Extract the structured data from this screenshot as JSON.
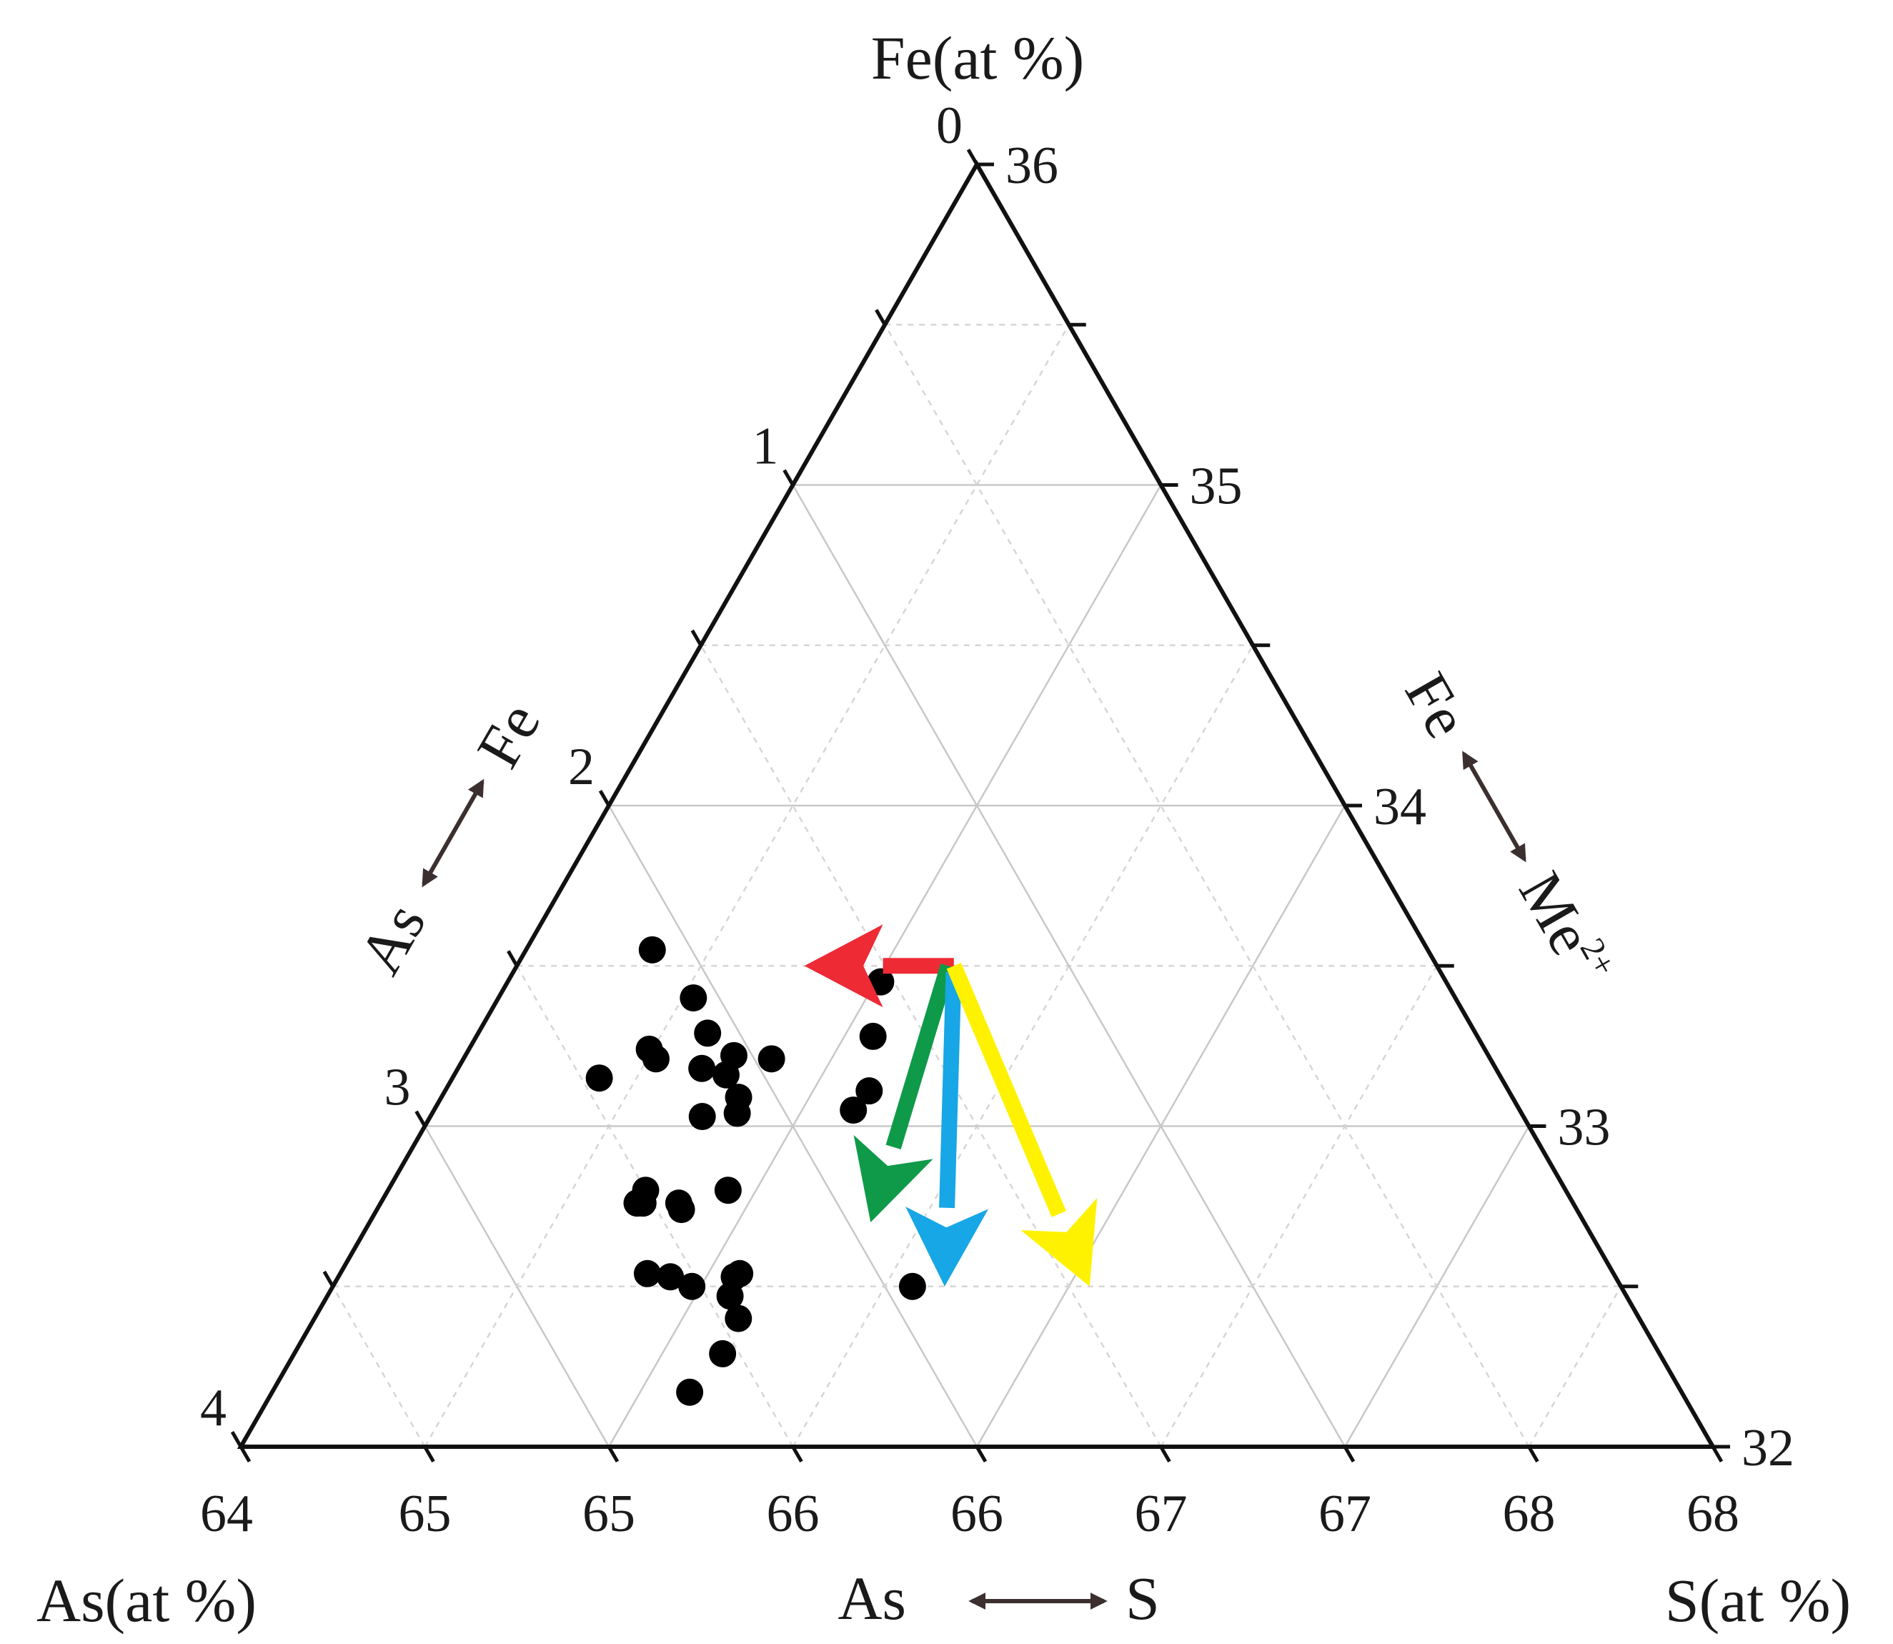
{
  "chart_data": {
    "type": "scatter",
    "subtype": "ternary",
    "title": "",
    "axes": {
      "top": {
        "title": "Fe(at %)",
        "range": [
          0,
          4
        ],
        "ticks": [
          "0",
          "1",
          "2",
          "3",
          "4"
        ]
      },
      "right": {
        "ticks": [
          "36",
          "35",
          "34",
          "33",
          "32"
        ],
        "trend_left": "Fe",
        "trend_right": "Me",
        "trend_right_sup": "2+"
      },
      "bottom": {
        "title": "As(at %)",
        "end_title": "S(at %)",
        "ticks": [
          "64",
          "65",
          "65",
          "66",
          "66",
          "67",
          "67",
          "68",
          "68"
        ],
        "trend_left": "As",
        "trend_right": "S"
      },
      "left": {
        "trend_bottom": "As",
        "trend_top": "Fe"
      }
    },
    "grid": true,
    "legend": "none",
    "colors": {
      "points": "#000000",
      "arrow_red": "#ee2a35",
      "arrow_green": "#0f9a4a",
      "arrow_blue": "#17a6e6",
      "arrow_yellow": "#fff200"
    },
    "points": [
      {
        "u": 1.12,
        "fe": 2.45
      },
      {
        "u": 1.12,
        "fe": 2.85
      },
      {
        "u": 1.63,
        "fe": 2.6
      },
      {
        "u": 1.84,
        "fe": 2.71
      },
      {
        "u": 1.42,
        "fe": 2.76
      },
      {
        "u": 1.5,
        "fe": 2.79
      },
      {
        "u": 2.1,
        "fe": 2.78
      },
      {
        "u": 1.88,
        "fe": 2.82
      },
      {
        "u": 2.08,
        "fe": 2.84
      },
      {
        "u": 1.99,
        "fe": 2.97
      },
      {
        "u": 2.4,
        "fe": 2.79
      },
      {
        "u": 2.22,
        "fe": 2.91
      },
      {
        "u": 2.24,
        "fe": 2.96
      },
      {
        "u": 1.75,
        "fe": 3.2
      },
      {
        "u": 1.72,
        "fe": 3.24
      },
      {
        "u": 1.76,
        "fe": 3.24
      },
      {
        "u": 2.0,
        "fe": 3.24
      },
      {
        "u": 2.03,
        "fe": 3.26
      },
      {
        "u": 2.31,
        "fe": 3.2
      },
      {
        "u": 1.93,
        "fe": 3.46
      },
      {
        "u": 2.08,
        "fe": 3.47
      },
      {
        "u": 2.23,
        "fe": 3.5
      },
      {
        "u": 2.48,
        "fe": 3.47
      },
      {
        "u": 2.51,
        "fe": 3.46
      },
      {
        "u": 2.48,
        "fe": 3.53
      },
      {
        "u": 2.56,
        "fe": 3.6
      },
      {
        "u": 2.51,
        "fe": 3.71
      },
      {
        "u": 2.37,
        "fe": 3.83
      },
      {
        "u": 3.18,
        "fe": 2.55
      },
      {
        "u": 3.17,
        "fe": 2.72
      },
      {
        "u": 3.19,
        "fe": 2.89
      },
      {
        "u": 3.09,
        "fe": 2.95
      },
      {
        "u": 3.6,
        "fe": 3.5
      }
    ],
    "arrows": [
      {
        "color": "arrow_red",
        "from": {
          "u": 3.8,
          "fe": 2.5
        },
        "to": {
          "u": 2.5,
          "fe": 2.5
        }
      },
      {
        "color": "arrow_green",
        "from": {
          "u": 3.75,
          "fe": 2.5
        },
        "to": {
          "u": 3.3,
          "fe": 3.3
        }
      },
      {
        "color": "arrow_blue",
        "from": {
          "u": 3.8,
          "fe": 2.52
        },
        "to": {
          "u": 3.8,
          "fe": 3.5
        }
      },
      {
        "color": "arrow_yellow",
        "from": {
          "u": 3.8,
          "fe": 2.5
        },
        "to": {
          "u": 4.7,
          "fe": 3.5
        }
      }
    ]
  }
}
